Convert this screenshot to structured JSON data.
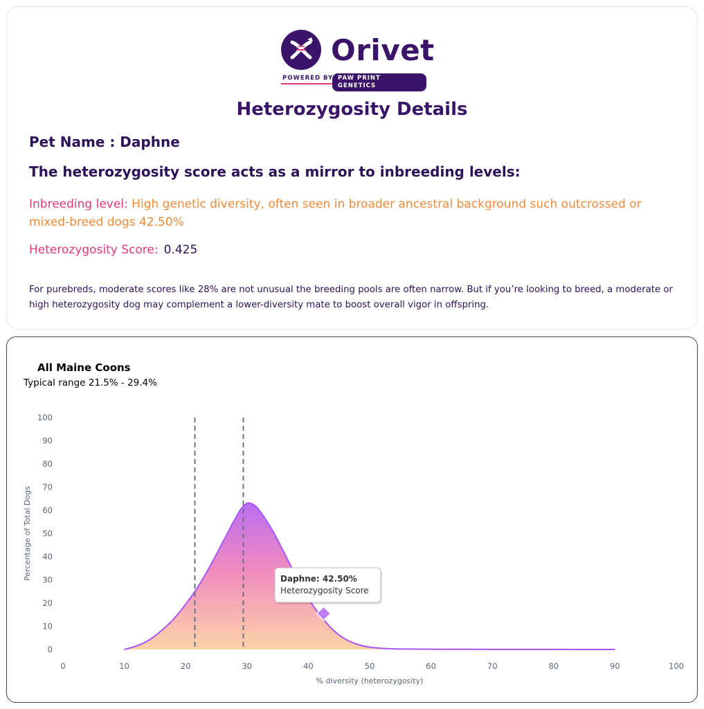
{
  "header": {
    "brand": "Orivet",
    "powered_by": "POWERED BY",
    "partner": "PAW PRINT GENETICS",
    "title": "Heterozygosity Details"
  },
  "pet": {
    "label": "Pet Name : Daphne"
  },
  "mirror_text": "The heterozygosity score acts as a mirror to inbreeding levels:",
  "inbreeding": {
    "label": "Inbreeding level:",
    "value": "High genetic diversity, often seen in broader ancestral background such outcrossed or mixed-breed dogs 42.50%"
  },
  "score": {
    "label": "Heterozygosity Score:",
    "value": "0.425"
  },
  "note": "For purebreds, moderate scores like 28% are not unusual the breeding pools are often narrow. But if you’re looking to breed, a moderate or high heterozygosity dog may complement a lower-diversity mate to boost overall vigor in offspring.",
  "chart_data": {
    "type": "area",
    "title": "All Maine Coons",
    "subtitle": "Typical range 21.5% - 29.4%",
    "xlabel": "% diversity (heterozygosity)",
    "ylabel": "Percentage of Total Dogs",
    "xlim": [
      0,
      100
    ],
    "ylim": [
      0,
      100
    ],
    "xticks": [
      0,
      10,
      20,
      30,
      40,
      50,
      60,
      70,
      80,
      90,
      100
    ],
    "yticks": [
      0,
      10,
      20,
      30,
      40,
      50,
      60,
      70,
      80,
      90,
      100
    ],
    "series": [
      {
        "x": [
          10,
          12,
          14,
          16,
          18,
          20,
          22,
          24,
          26,
          28,
          29,
          30,
          31,
          32,
          34,
          36,
          38,
          40,
          42,
          44,
          46,
          48,
          50,
          52,
          55,
          60,
          70,
          80,
          90
        ],
        "y": [
          0,
          1.5,
          4,
          8,
          13,
          19.5,
          27,
          36,
          46,
          56,
          60.5,
          63,
          62.5,
          60,
          52,
          42,
          31.5,
          22,
          14.5,
          8.5,
          4.5,
          2.2,
          1.0,
          0.5,
          0.2,
          0.1,
          0.05,
          0.02,
          0
        ]
      }
    ],
    "reference_lines": [
      21.5,
      29.4
    ],
    "marker": {
      "x": 42.5,
      "y": 15.5,
      "label": "Daphne: 42.50%",
      "sublabel": "Heterozygosity Score"
    },
    "colors": {
      "line": "#a855f7",
      "fill_top": "#b86ef0",
      "fill_mid": "#f08ac0",
      "fill_bottom": "#fcd3a8",
      "ref": "#6b7280",
      "marker": "#c07ef5"
    },
    "grid": false,
    "legend": "none"
  }
}
